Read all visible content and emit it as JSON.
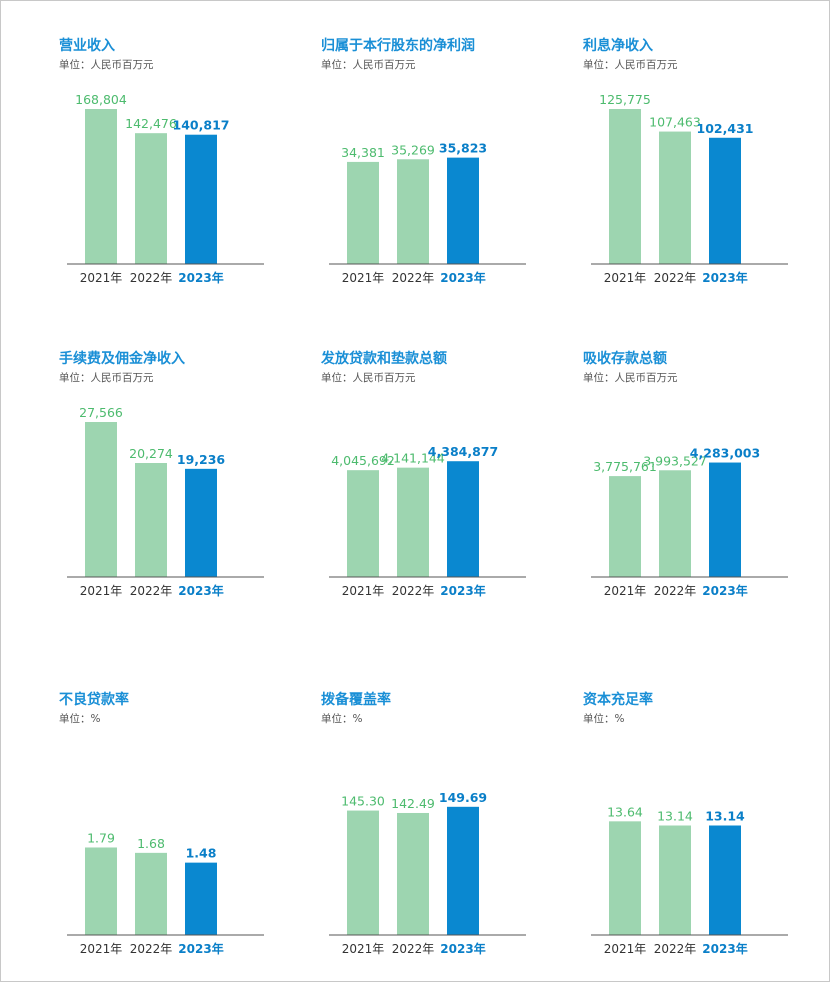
{
  "colors": {
    "title": "#1a8fd6",
    "bar_prior": "#9dd5b0",
    "bar_current": "#0a88d0",
    "label_prior": "#4dbb6e",
    "label_current": "#0a7fc8",
    "axis": "#555555",
    "tick": "#333333"
  },
  "chart_data": [
    {
      "type": "bar",
      "title": "营业收入",
      "unit": "单位：人民币百万元",
      "categories": [
        "2021年",
        "2022年",
        "2023年"
      ],
      "values": [
        168804,
        142476,
        140817
      ],
      "value_labels": [
        "168,804",
        "142,476",
        "140,817"
      ],
      "ylim": [
        0,
        168804
      ]
    },
    {
      "type": "bar",
      "title": "归属于本行股东的净利润",
      "unit": "单位：人民币百万元",
      "categories": [
        "2021年",
        "2022年",
        "2023年"
      ],
      "values": [
        34381,
        35269,
        35823
      ],
      "value_labels": [
        "34,381",
        "35,269",
        "35,823"
      ],
      "ylim": [
        0,
        52200
      ]
    },
    {
      "type": "bar",
      "title": "利息净收入",
      "unit": "单位：人民币百万元",
      "categories": [
        "2021年",
        "2022年",
        "2023年"
      ],
      "values": [
        125775,
        107463,
        102431
      ],
      "value_labels": [
        "125,775",
        "107,463",
        "102,431"
      ],
      "ylim": [
        0,
        125775
      ]
    },
    {
      "type": "bar",
      "title": "手续费及佣金净收入",
      "unit": "单位：人民币百万元",
      "categories": [
        "2021年",
        "2022年",
        "2023年"
      ],
      "values": [
        27566,
        20274,
        19236
      ],
      "value_labels": [
        "27,566",
        "20,274",
        "19,236"
      ],
      "ylim": [
        0,
        27566
      ]
    },
    {
      "type": "bar",
      "title": "发放贷款和垫款总额",
      "unit": "单位：人民币百万元",
      "categories": [
        "2021年",
        "2022年",
        "2023年"
      ],
      "values": [
        4045692,
        4141144,
        4384877
      ],
      "value_labels": [
        "4,045,692",
        "4,141,144",
        "4,384,877"
      ],
      "ylim": [
        0,
        5870000
      ]
    },
    {
      "type": "bar",
      "title": "吸收存款总额",
      "unit": "单位：人民币百万元",
      "categories": [
        "2021年",
        "2022年",
        "2023年"
      ],
      "values": [
        3775761,
        3993527,
        4283003
      ],
      "value_labels": [
        "3,775,761",
        "3,993,527",
        "4,283,003"
      ],
      "ylim": [
        0,
        5800000
      ]
    },
    {
      "type": "bar",
      "title": "不良贷款率",
      "unit": "单位：%",
      "categories": [
        "2021年",
        "2022年",
        "2023年"
      ],
      "values": [
        1.79,
        1.68,
        1.48
      ],
      "value_labels": [
        "1.79",
        "1.68",
        "1.48"
      ],
      "ylim": [
        0,
        3.17
      ]
    },
    {
      "type": "bar",
      "title": "拨备覆盖率",
      "unit": "单位：%",
      "categories": [
        "2021年",
        "2022年",
        "2023年"
      ],
      "values": [
        145.3,
        142.49,
        149.69
      ],
      "value_labels": [
        "145.30",
        "142.49",
        "149.69"
      ],
      "ylim": [
        0,
        181
      ]
    },
    {
      "type": "bar",
      "title": "资本充足率",
      "unit": "单位：%",
      "categories": [
        "2021年",
        "2022年",
        "2023年"
      ],
      "values": [
        13.64,
        13.14,
        13.14
      ],
      "value_labels": [
        "13.64",
        "13.14",
        "13.14"
      ],
      "ylim": [
        0,
        18.6
      ]
    }
  ]
}
